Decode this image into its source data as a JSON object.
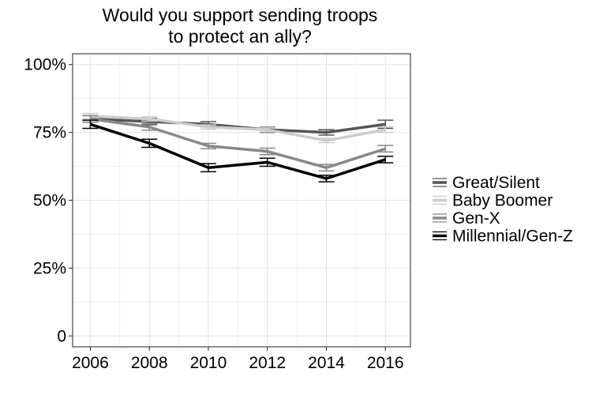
{
  "chart_data": {
    "type": "line",
    "title_lines": [
      "Would you support sending troops",
      "to protect an ally?"
    ],
    "xlabel": "",
    "ylabel": "",
    "x": [
      2006,
      2008,
      2010,
      2012,
      2014,
      2016
    ],
    "x_ticks": [
      "2006",
      "2008",
      "2010",
      "2012",
      "2014",
      "2016"
    ],
    "y_ticks": [
      {
        "value": 0,
        "label": "0"
      },
      {
        "value": 25,
        "label": "25%"
      },
      {
        "value": 50,
        "label": "50%"
      },
      {
        "value": 75,
        "label": "75%"
      },
      {
        "value": 100,
        "label": "100%"
      }
    ],
    "ylim": [
      -4,
      104
    ],
    "xlim": [
      2005.4,
      2016.85
    ],
    "grid": true,
    "legend_position": "right",
    "series": [
      {
        "name": "Great/Silent",
        "color": "#555555",
        "values": [
          80,
          79,
          78,
          76,
          75,
          78
        ],
        "err": [
          1.2,
          1.2,
          1.0,
          1.0,
          1.0,
          1.5
        ]
      },
      {
        "name": "Baby Boomer",
        "color": "#cccccc",
        "values": [
          81,
          80,
          77,
          76,
          72,
          76
        ],
        "err": [
          1.0,
          0.8,
          0.8,
          0.8,
          0.8,
          1.0
        ]
      },
      {
        "name": "Gen-X",
        "color": "#888888",
        "values": [
          80,
          77,
          70,
          68,
          62,
          69
        ],
        "err": [
          1.2,
          1.2,
          1.0,
          1.2,
          1.2,
          1.2
        ]
      },
      {
        "name": "Millennial/Gen-Z",
        "color": "#000000",
        "values": [
          78,
          71,
          62,
          64,
          58,
          65
        ],
        "err": [
          1.5,
          1.5,
          1.5,
          1.5,
          1.2,
          1.2
        ]
      }
    ]
  }
}
